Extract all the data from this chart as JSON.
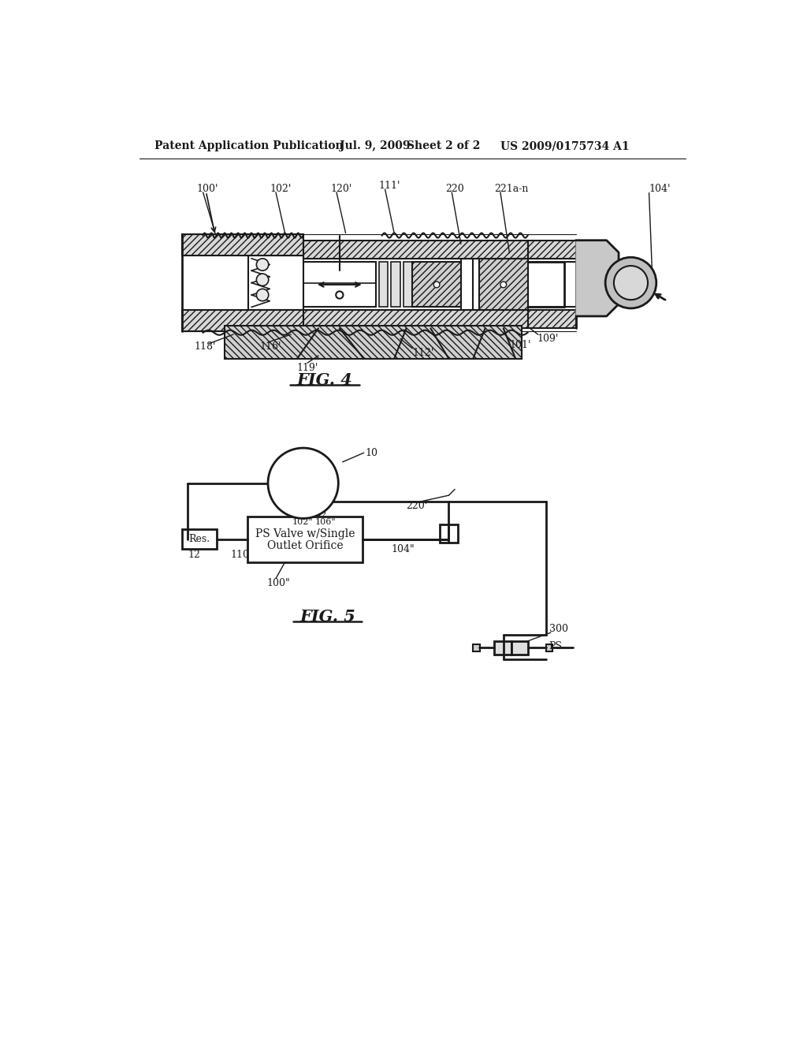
{
  "bg_color": "#ffffff",
  "header_text1": "Patent Application Publication",
  "header_text2": "Jul. 9, 2009",
  "header_text3": "Sheet 2 of 2",
  "header_text4": "US 2009/0175734 A1",
  "fig4_label": "FIG. 4",
  "fig5_label": "FIG. 5",
  "line_color": "#1a1a1a",
  "text_color": "#1a1a1a"
}
